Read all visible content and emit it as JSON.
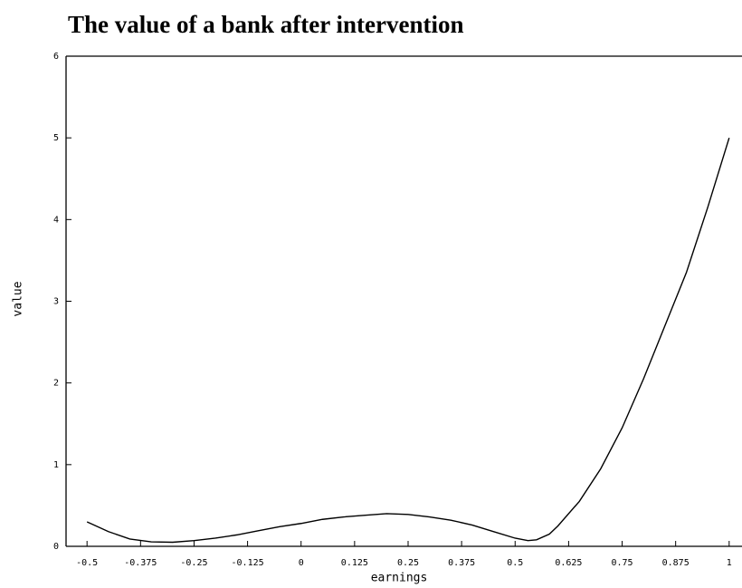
{
  "chart_data": {
    "type": "line",
    "title": "The value of a bank after intervention",
    "x_label": "earnings",
    "y_label": "value",
    "x": [
      -0.5,
      -0.45,
      -0.4,
      -0.35,
      -0.3,
      -0.25,
      -0.2,
      -0.15,
      -0.1,
      -0.05,
      0,
      0.05,
      0.1,
      0.15,
      0.2,
      0.25,
      0.3,
      0.35,
      0.4,
      0.45,
      0.5,
      0.53,
      0.55,
      0.58,
      0.6,
      0.65,
      0.7,
      0.75,
      0.8,
      0.85,
      0.9,
      0.95,
      1.0
    ],
    "series": [
      {
        "color": "#000000",
        "values": [
          0.3,
          0.18,
          0.09,
          0.055,
          0.05,
          0.07,
          0.1,
          0.14,
          0.19,
          0.24,
          0.28,
          0.33,
          0.36,
          0.38,
          0.4,
          0.39,
          0.36,
          0.32,
          0.26,
          0.18,
          0.1,
          0.07,
          0.08,
          0.15,
          0.25,
          0.55,
          0.95,
          1.45,
          2.05,
          2.7,
          3.35,
          4.15,
          5.0
        ]
      }
    ],
    "xlim": [
      -0.549,
      1.03
    ],
    "ylim": [
      0,
      6
    ],
    "xticks": [
      -0.5,
      -0.375,
      -0.25,
      -0.125,
      0,
      0.125,
      0.25,
      0.375,
      0.5,
      0.625,
      0.75,
      0.875,
      1
    ],
    "yticks": [
      0,
      1,
      2,
      3,
      4,
      5,
      6
    ]
  }
}
